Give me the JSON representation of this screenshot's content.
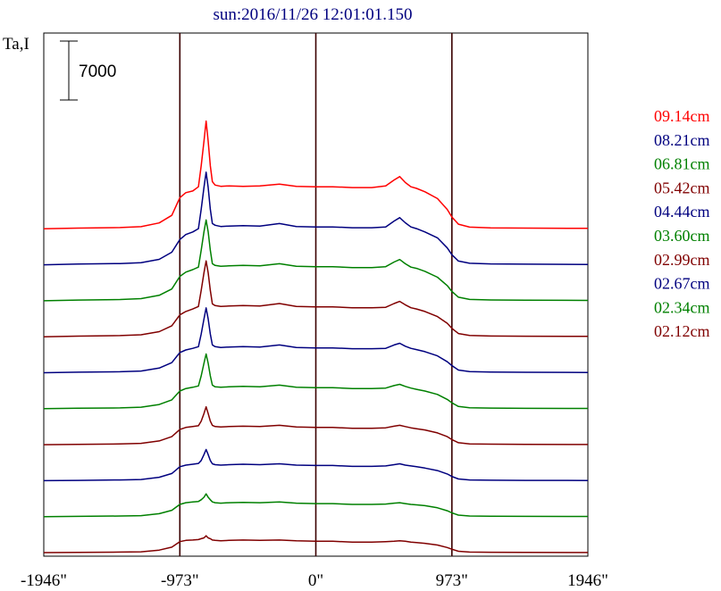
{
  "chart_data": {
    "type": "line",
    "title": "sun:2016/11/26 12:01:01.150",
    "ylabel": "Ta,I",
    "scale_bar": "7000",
    "x_ticks": [
      "-1946\"",
      "-973\"",
      "0\"",
      "973\"",
      "1946\""
    ],
    "x_tick_values": [
      -1946,
      -973,
      0,
      973,
      1946
    ],
    "vlines": [
      -973,
      0,
      973
    ],
    "xlim": [
      -1946,
      1946
    ],
    "y_units_per_offset": 1800,
    "x": [
      -1946,
      -1700,
      -1400,
      -1250,
      -1120,
      -1030,
      -973,
      -930,
      -880,
      -840,
      -820,
      -800,
      -785,
      -770,
      -755,
      -740,
      -720,
      -680,
      -620,
      -520,
      -400,
      -260,
      -140,
      0,
      120,
      260,
      400,
      500,
      560,
      600,
      640,
      680,
      720,
      780,
      870,
      940,
      973,
      1020,
      1100,
      1250,
      1500,
      1946
    ],
    "series": [
      {
        "name": "09.14cm",
        "color": "#ff0000",
        "offset": 9,
        "values": [
          0,
          80,
          150,
          250,
          700,
          1600,
          3700,
          4300,
          4500,
          5000,
          7500,
          10400,
          12800,
          10400,
          7500,
          5600,
          5200,
          5050,
          5100,
          5050,
          5100,
          5300,
          5050,
          5000,
          5000,
          4900,
          4900,
          5100,
          5800,
          6200,
          5500,
          5000,
          4800,
          4400,
          3600,
          2300,
          1400,
          550,
          200,
          120,
          80,
          50
        ]
      },
      {
        "name": "08.21cm",
        "color": "#00007f",
        "offset": 8,
        "values": [
          0,
          80,
          150,
          250,
          650,
          1500,
          3000,
          3600,
          3900,
          4300,
          6600,
          9200,
          11000,
          9200,
          6600,
          4900,
          4700,
          4550,
          4600,
          4650,
          4600,
          4900,
          4550,
          4500,
          4500,
          4400,
          4400,
          4500,
          5200,
          5600,
          5000,
          4500,
          4300,
          3900,
          3200,
          2000,
          1200,
          450,
          180,
          110,
          70,
          40
        ]
      },
      {
        "name": "06.81cm",
        "color": "#008000",
        "offset": 7,
        "values": [
          0,
          80,
          150,
          250,
          650,
          1400,
          2900,
          3400,
          3700,
          4000,
          6000,
          8200,
          9600,
          8200,
          6000,
          4400,
          4200,
          4100,
          4150,
          4200,
          4150,
          4400,
          4100,
          4050,
          4050,
          3950,
          3950,
          4050,
          4600,
          4900,
          4400,
          4000,
          3850,
          3500,
          2800,
          1800,
          1100,
          420,
          160,
          100,
          60,
          40
        ]
      },
      {
        "name": "05.42cm",
        "color": "#800000",
        "offset": 6,
        "values": [
          0,
          70,
          140,
          230,
          600,
          1300,
          2600,
          3000,
          3300,
          3600,
          5500,
          7600,
          9000,
          7600,
          5500,
          3900,
          3700,
          3600,
          3650,
          3700,
          3650,
          3950,
          3600,
          3550,
          3550,
          3450,
          3450,
          3500,
          3950,
          4200,
          3800,
          3450,
          3300,
          3000,
          2400,
          1600,
          1000,
          380,
          150,
          90,
          60,
          40
        ]
      },
      {
        "name": "04.44cm",
        "color": "#00007f",
        "offset": 5,
        "values": [
          0,
          60,
          120,
          200,
          550,
          1200,
          2400,
          2700,
          2900,
          3100,
          4600,
          6400,
          7700,
          6400,
          4600,
          3300,
          3100,
          3000,
          3050,
          3100,
          3050,
          3300,
          3000,
          2950,
          2950,
          2850,
          2850,
          2900,
          3300,
          3500,
          3150,
          2900,
          2750,
          2500,
          2000,
          1300,
          850,
          320,
          130,
          80,
          50,
          30
        ]
      },
      {
        "name": "03.60cm",
        "color": "#008000",
        "offset": 4,
        "values": [
          0,
          50,
          100,
          180,
          500,
          1050,
          2100,
          2400,
          2550,
          2700,
          3900,
          5400,
          6500,
          5400,
          3900,
          2800,
          2600,
          2550,
          2600,
          2650,
          2600,
          2800,
          2550,
          2500,
          2500,
          2400,
          2400,
          2450,
          2750,
          2900,
          2650,
          2450,
          2300,
          2100,
          1700,
          1100,
          700,
          270,
          110,
          70,
          40,
          30
        ]
      },
      {
        "name": "02.99cm",
        "color": "#800000",
        "offset": 3,
        "values": [
          0,
          40,
          90,
          160,
          450,
          950,
          1800,
          2050,
          2150,
          2250,
          2800,
          3700,
          4500,
          3700,
          2800,
          2300,
          2150,
          2100,
          2150,
          2200,
          2150,
          2300,
          2100,
          2050,
          2050,
          1950,
          1950,
          2000,
          2200,
          2300,
          2150,
          2000,
          1900,
          1750,
          1400,
          950,
          600,
          230,
          90,
          60,
          40,
          20
        ]
      },
      {
        "name": "02.67cm",
        "color": "#00007f",
        "offset": 2,
        "values": [
          0,
          35,
          80,
          140,
          400,
          850,
          1650,
          1850,
          1950,
          2050,
          2400,
          3100,
          3700,
          3100,
          2400,
          2000,
          1900,
          1850,
          1900,
          1950,
          1900,
          2000,
          1850,
          1800,
          1800,
          1700,
          1700,
          1750,
          1900,
          2000,
          1850,
          1750,
          1650,
          1500,
          1200,
          800,
          500,
          200,
          80,
          50,
          30,
          20
        ]
      },
      {
        "name": "02.34cm",
        "color": "#008000",
        "offset": 1,
        "values": [
          0,
          30,
          70,
          120,
          350,
          750,
          1450,
          1650,
          1750,
          1800,
          2000,
          2300,
          2700,
          2300,
          2000,
          1750,
          1650,
          1600,
          1650,
          1700,
          1650,
          1750,
          1600,
          1550,
          1550,
          1450,
          1450,
          1500,
          1600,
          1650,
          1550,
          1450,
          1400,
          1300,
          1050,
          700,
          450,
          180,
          70,
          40,
          30,
          20
        ]
      },
      {
        "name": "02.12cm",
        "color": "#800000",
        "offset": 0,
        "values": [
          0,
          25,
          60,
          100,
          300,
          650,
          1300,
          1450,
          1500,
          1550,
          1650,
          1750,
          2000,
          1750,
          1650,
          1500,
          1450,
          1400,
          1450,
          1500,
          1450,
          1500,
          1400,
          1350,
          1350,
          1250,
          1250,
          1300,
          1350,
          1400,
          1350,
          1250,
          1200,
          1100,
          900,
          600,
          400,
          160,
          60,
          40,
          20,
          10
        ]
      }
    ]
  }
}
